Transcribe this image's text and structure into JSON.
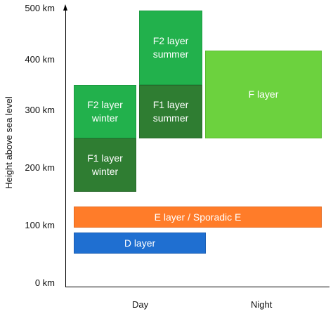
{
  "axis": {
    "y_label": "Height above sea level",
    "y_ticks": [
      "0 km",
      "100 km",
      "200 km",
      "300 km",
      "400 km",
      "500 km"
    ],
    "x_categories": [
      "Day",
      "Night"
    ]
  },
  "layers": {
    "f2_winter": "F2 layer\nwinter",
    "f1_winter": "F1 layer\nwinter",
    "f2_summer": "F2 layer\nsummer",
    "f1_summer": "F1 layer\nsummer",
    "f_layer": "F layer",
    "e_layer": "E layer / Sporadic E",
    "d_layer": "D layer"
  },
  "colors": {
    "f2": "#22b14c",
    "f1": "#2f7d32",
    "f": "#6cd23e",
    "e": "#ff7c29",
    "d": "#1f6fd1"
  }
}
